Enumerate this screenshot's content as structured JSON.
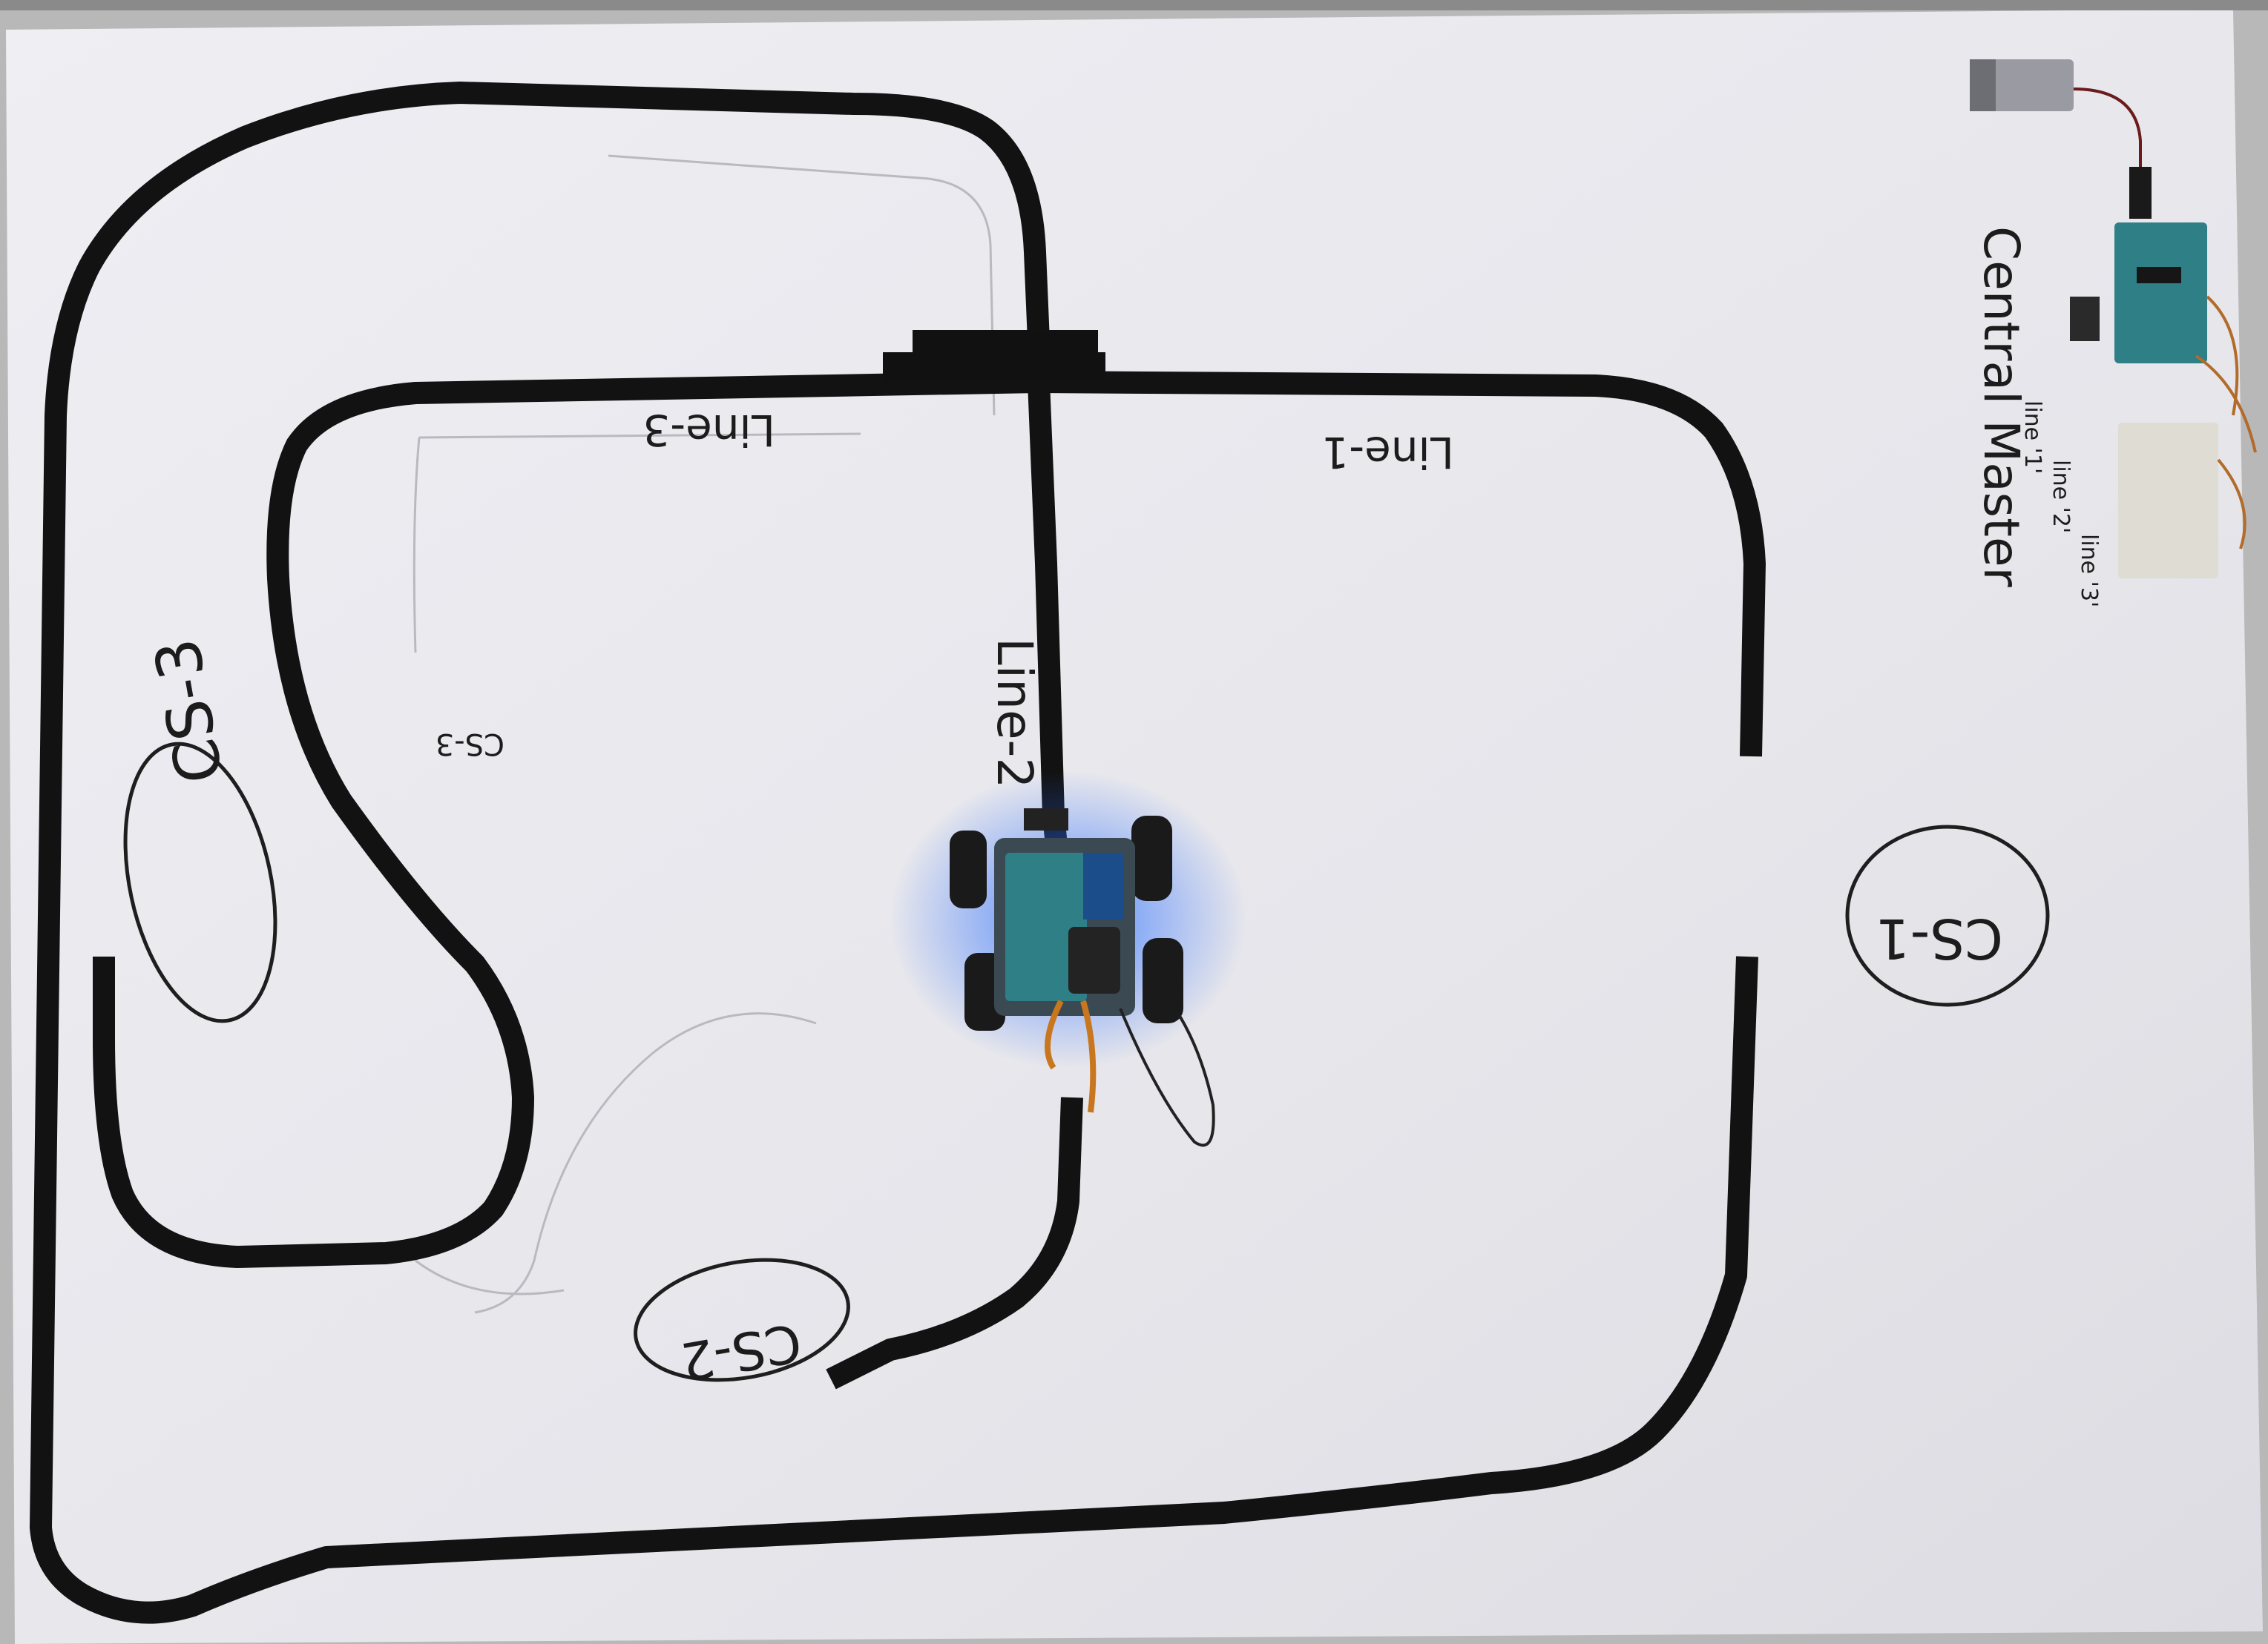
{
  "labels": {
    "line_1": "Line-1",
    "line_2": "Line-2",
    "line_3": "Line-3",
    "station_1": "CS-1",
    "station_2": "CS-2",
    "station_3": "CS-3",
    "station_3_small": "CS-3",
    "central_master": "Central Master",
    "master_line_1": "line '1'",
    "master_line_2": "line '2'",
    "master_line_3": "line '3'"
  },
  "colors": {
    "paper": "#e9e9ee",
    "tape": "#111111",
    "led_glow": "#1e6bff",
    "board": "#2f7f86"
  }
}
